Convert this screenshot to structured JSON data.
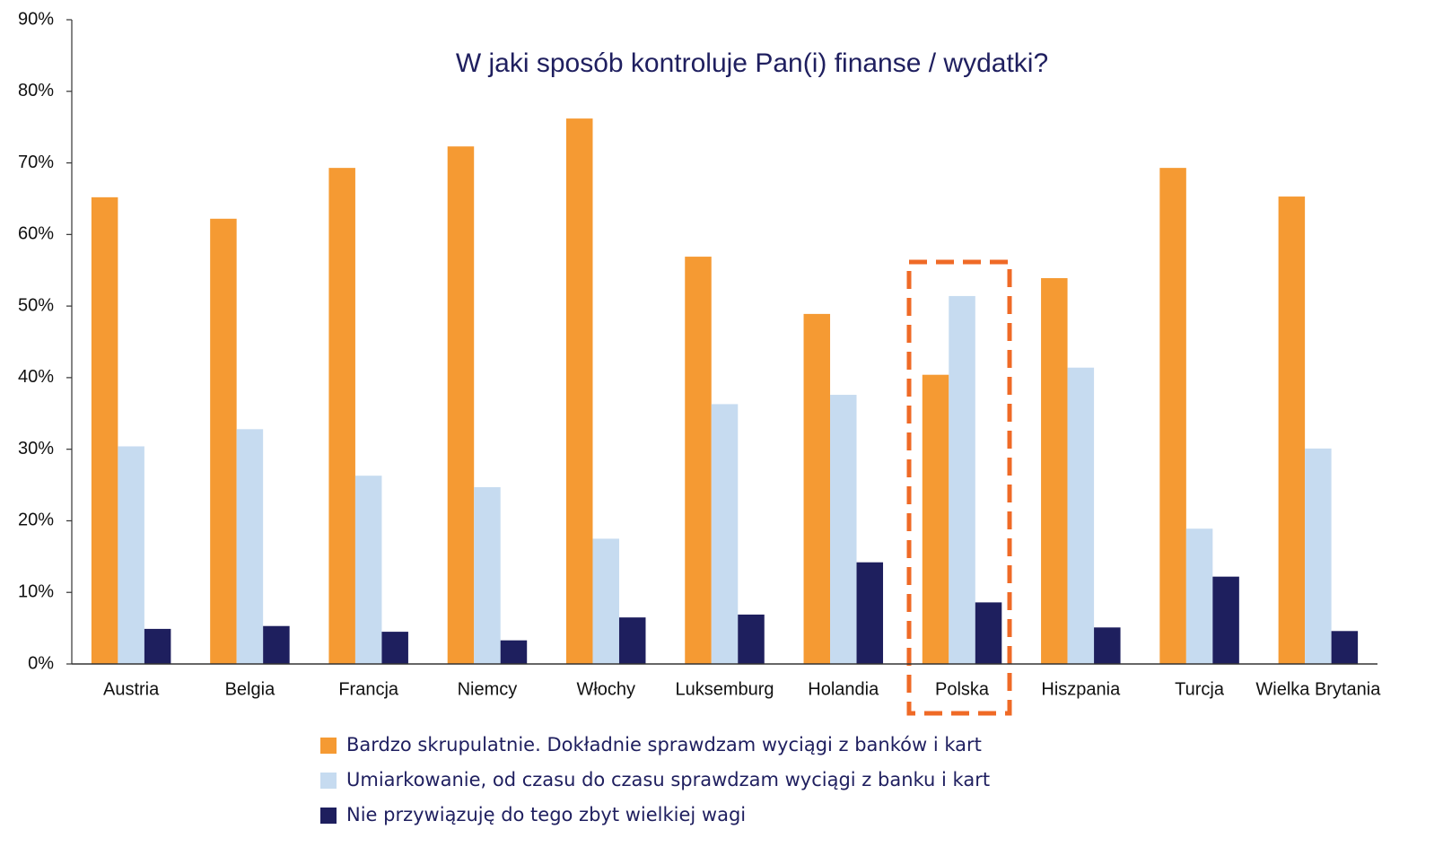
{
  "chart_data": {
    "type": "bar",
    "title": "W jaki sposób kontroluje Pan(i) finanse / wydatki?",
    "categories": [
      "Austria",
      "Belgia",
      "Francja",
      "Niemcy",
      "Włochy",
      "Luksemburg",
      "Holandia",
      "Polska",
      "Hiszpania",
      "Turcja",
      "Wielka Brytania"
    ],
    "series": [
      {
        "name": "Bardzo skrupulatnie. Dokładnie sprawdzam wyciągi z banków i kart",
        "color": "#f59a33",
        "values": [
          65.2,
          62.2,
          69.3,
          72.3,
          76.2,
          56.9,
          48.9,
          40.4,
          53.9,
          69.3,
          65.3
        ]
      },
      {
        "name": "Umiarkowanie, od czasu do czasu sprawdzam wyciągi z banku i kart",
        "color": "#c6dbf0",
        "values": [
          30.4,
          32.8,
          26.3,
          24.7,
          17.5,
          36.3,
          37.6,
          51.4,
          41.4,
          18.9,
          30.1
        ]
      },
      {
        "name": "Nie przywiązuję do tego zbyt wielkiej wagi",
        "color": "#1e1f5e",
        "values": [
          4.9,
          5.3,
          4.5,
          3.3,
          6.5,
          6.9,
          14.2,
          8.6,
          5.1,
          12.2,
          4.6
        ]
      }
    ],
    "ylim": [
      0,
      90
    ],
    "yticks": [
      {
        "value": 0,
        "label": "0%"
      },
      {
        "value": 10,
        "label": "10%"
      },
      {
        "value": 20,
        "label": "20%"
      },
      {
        "value": 30,
        "label": "30%"
      },
      {
        "value": 40,
        "label": "40%"
      },
      {
        "value": 50,
        "label": "50%"
      },
      {
        "value": 60,
        "label": "60%"
      },
      {
        "value": 70,
        "label": "70%"
      },
      {
        "value": 80,
        "label": "80%"
      },
      {
        "value": 90,
        "label": "90%"
      }
    ],
    "grid": false,
    "legend": "bottom"
  }
}
